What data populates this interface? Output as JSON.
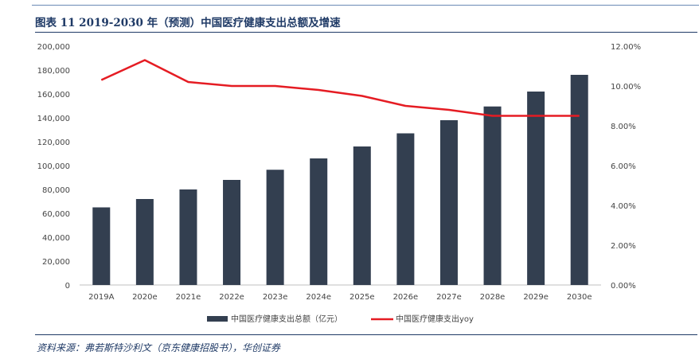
{
  "header": {
    "title": "图表 11   2019-2030 年（预测）中国医疗健康支出总额及增速"
  },
  "footer": {
    "source": "资料来源：弗若斯特沙利文（京东健康招股书），华创证券"
  },
  "colors": {
    "bar": "#333f50",
    "line": "#e51c23",
    "axis_text": "#444444",
    "title": "#1f3a66"
  },
  "chart_data": {
    "type": "bar",
    "categories": [
      "2019A",
      "2020e",
      "2021e",
      "2022e",
      "2023e",
      "2024e",
      "2025e",
      "2026e",
      "2027e",
      "2028e",
      "2029e",
      "2030e"
    ],
    "series": [
      {
        "name": "中国医疗健康支出总额（亿元）",
        "type": "bar",
        "axis": "left",
        "values": [
          65000,
          72000,
          80000,
          88000,
          96500,
          106000,
          116000,
          127000,
          138000,
          149500,
          162000,
          176000
        ]
      },
      {
        "name": "中国医疗健康支出yoy",
        "type": "line",
        "axis": "right",
        "values": [
          10.3,
          11.3,
          10.2,
          10.0,
          10.0,
          9.8,
          9.5,
          9.0,
          8.8,
          8.5,
          8.5,
          8.5
        ]
      }
    ],
    "y_left": {
      "min": 0,
      "max": 200000,
      "ticks": [
        "0",
        "20,000",
        "40,000",
        "60,000",
        "80,000",
        "100,000",
        "120,000",
        "140,000",
        "160,000",
        "180,000",
        "200,000"
      ]
    },
    "y_right": {
      "min": 0,
      "max": 12,
      "ticks": [
        "0.00%",
        "2.00%",
        "4.00%",
        "6.00%",
        "8.00%",
        "10.00%",
        "12.00%"
      ]
    },
    "legend_position": "bottom-center",
    "grid": false
  }
}
